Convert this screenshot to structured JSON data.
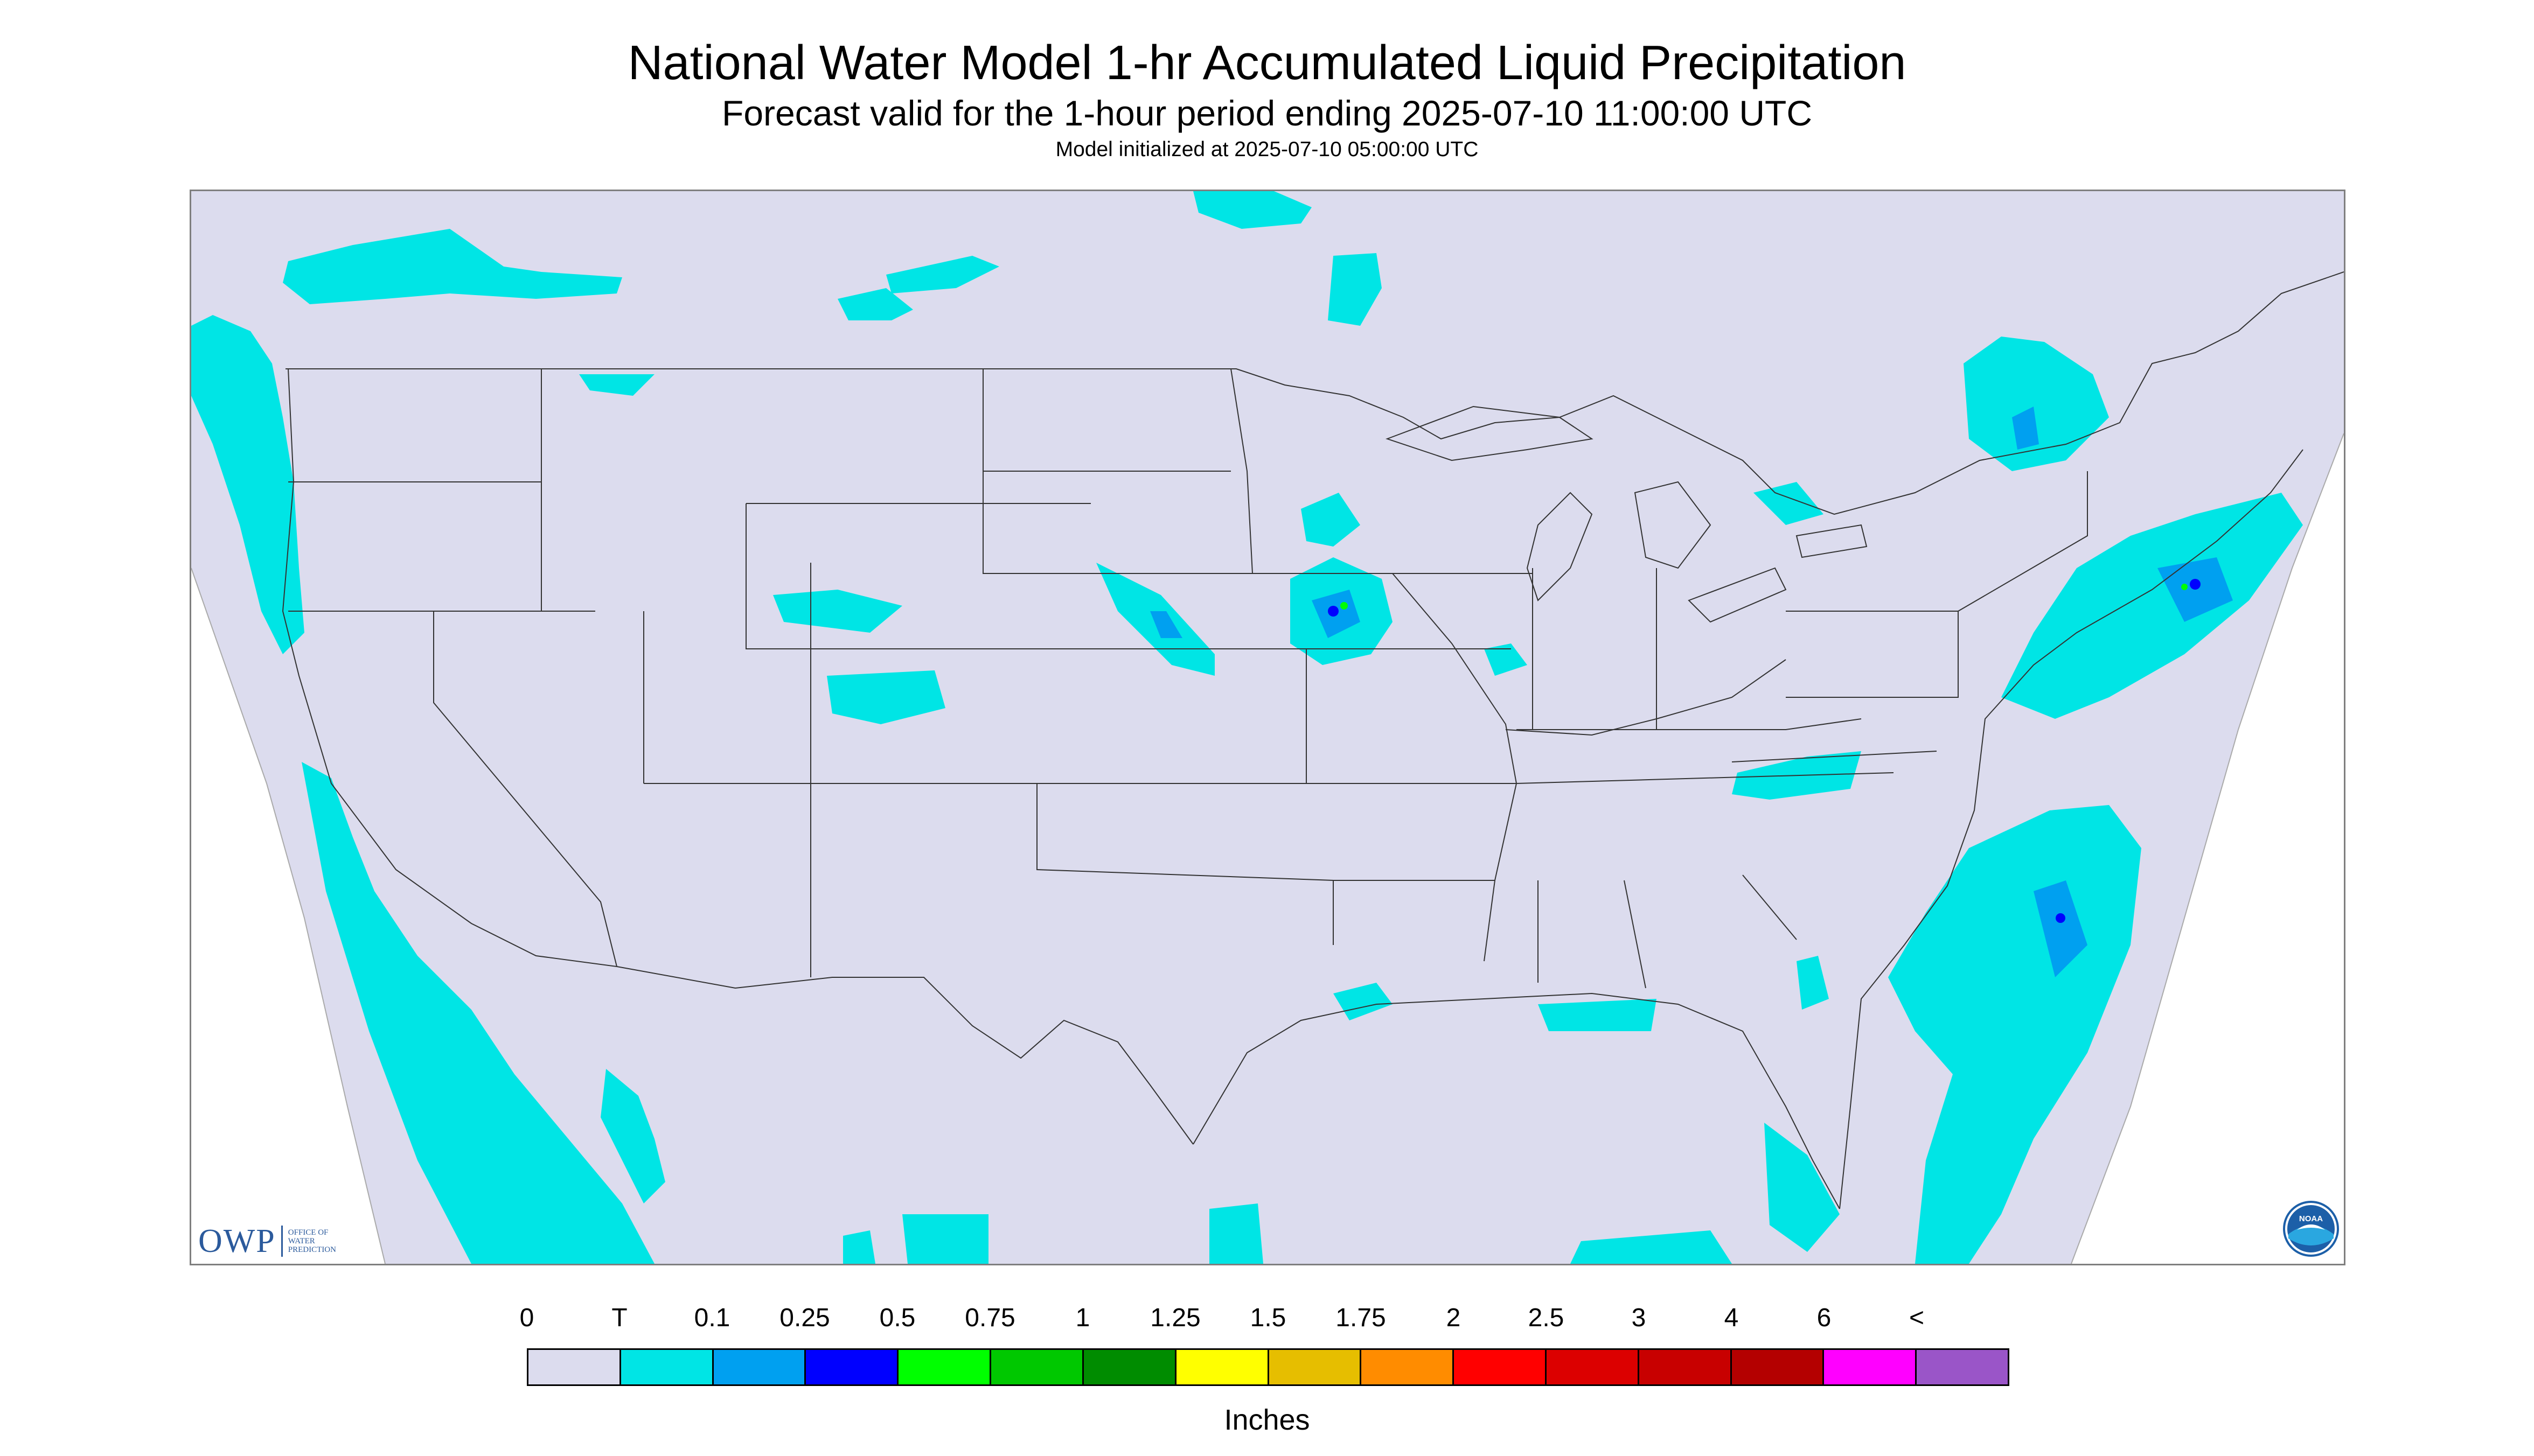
{
  "header": {
    "title": "National Water Model 1-hr Accumulated Liquid Precipitation",
    "subtitle": "Forecast valid for the 1-hour period ending 2025-07-10 11:00:00 UTC",
    "init": "Model initialized at 2025-07-10 05:00:00 UTC"
  },
  "map": {
    "background_color": "#dcdcee",
    "outside_color": "#ffffff",
    "boundary_color": "#333333",
    "precip_colors": {
      "trace": "#00e5e5",
      "light": "#00a0f0",
      "moderate": "#0000ff",
      "heavy": "#00ff00"
    }
  },
  "logos": {
    "owp_wordmark": "OWP",
    "owp_line1": "OFFICE OF",
    "owp_line2": "WATER",
    "owp_line3": "PREDICTION",
    "noaa_text": "NOAA"
  },
  "legend": {
    "labels": [
      "0",
      "T",
      "0.1",
      "0.25",
      "0.5",
      "0.75",
      "1",
      "1.25",
      "1.5",
      "1.75",
      "2",
      "2.5",
      "3",
      "4",
      "6",
      "<"
    ],
    "colors": [
      "#dcdcee",
      "#00e5e5",
      "#00a0f0",
      "#0000ff",
      "#00ff00",
      "#00c800",
      "#008c00",
      "#ffff00",
      "#e6be00",
      "#ff8c00",
      "#ff0000",
      "#dc0000",
      "#c80000",
      "#b40000",
      "#ff00ff",
      "#9a55c8"
    ],
    "units": "Inches"
  }
}
